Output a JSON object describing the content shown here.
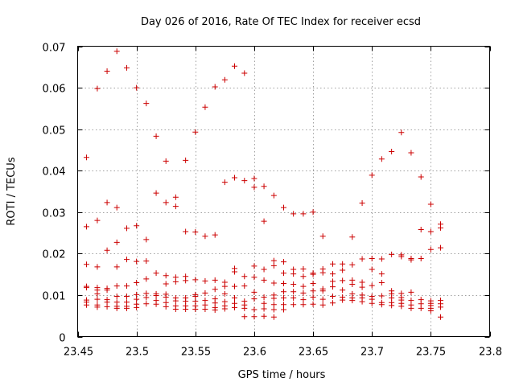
{
  "chart_data": {
    "type": "scatter",
    "title": "Day 026 of 2016, Rate Of TEC Index for receiver ecsd",
    "xlabel": "GPS time / hours",
    "ylabel": "ROTI / TECUs",
    "xlim": [
      23.45,
      23.8
    ],
    "ylim": [
      0,
      0.07
    ],
    "xticks": [
      "23.45",
      "23.5",
      "23.55",
      "23.6",
      "23.65",
      "23.7",
      "23.75",
      "23.8"
    ],
    "yticks": [
      "0",
      "0.01",
      "0.02",
      "0.03",
      "0.04",
      "0.05",
      "0.06",
      "0.07"
    ],
    "grid": true,
    "marker": "+",
    "color": "#cc0000",
    "points": [
      [
        23.4575,
        0.0432
      ],
      [
        23.4575,
        0.0265
      ],
      [
        23.4575,
        0.0174
      ],
      [
        23.4575,
        0.0121
      ],
      [
        23.4575,
        0.0118
      ],
      [
        23.4575,
        0.0088
      ],
      [
        23.4575,
        0.0083
      ],
      [
        23.4575,
        0.0076
      ],
      [
        23.4667,
        0.0598
      ],
      [
        23.4667,
        0.028
      ],
      [
        23.4667,
        0.0168
      ],
      [
        23.4667,
        0.0118
      ],
      [
        23.4667,
        0.0112
      ],
      [
        23.4667,
        0.0103
      ],
      [
        23.4667,
        0.009
      ],
      [
        23.4667,
        0.0076
      ],
      [
        23.4667,
        0.0071
      ],
      [
        23.475,
        0.064
      ],
      [
        23.475,
        0.0323
      ],
      [
        23.475,
        0.0208
      ],
      [
        23.475,
        0.0116
      ],
      [
        23.475,
        0.0112
      ],
      [
        23.475,
        0.0089
      ],
      [
        23.475,
        0.0083
      ],
      [
        23.475,
        0.0072
      ],
      [
        23.4833,
        0.0688
      ],
      [
        23.4833,
        0.0311
      ],
      [
        23.4833,
        0.0227
      ],
      [
        23.4833,
        0.0168
      ],
      [
        23.4833,
        0.0122
      ],
      [
        23.4833,
        0.0097
      ],
      [
        23.4833,
        0.0083
      ],
      [
        23.4833,
        0.0073
      ],
      [
        23.4833,
        0.0068
      ],
      [
        23.4917,
        0.0648
      ],
      [
        23.4917,
        0.0261
      ],
      [
        23.4917,
        0.0186
      ],
      [
        23.4917,
        0.0122
      ],
      [
        23.4917,
        0.0097
      ],
      [
        23.4917,
        0.0083
      ],
      [
        23.4917,
        0.0073
      ],
      [
        23.4917,
        0.0068
      ],
      [
        23.5,
        0.06
      ],
      [
        23.5,
        0.0267
      ],
      [
        23.5,
        0.0181
      ],
      [
        23.5,
        0.013
      ],
      [
        23.5,
        0.0101
      ],
      [
        23.5,
        0.009
      ],
      [
        23.5,
        0.0078
      ],
      [
        23.5,
        0.007
      ],
      [
        23.5083,
        0.0562
      ],
      [
        23.5083,
        0.0234
      ],
      [
        23.5083,
        0.0182
      ],
      [
        23.5083,
        0.0139
      ],
      [
        23.5083,
        0.0104
      ],
      [
        23.5083,
        0.0094
      ],
      [
        23.5083,
        0.0079
      ],
      [
        23.5167,
        0.0483
      ],
      [
        23.5167,
        0.0346
      ],
      [
        23.5167,
        0.0153
      ],
      [
        23.5167,
        0.0103
      ],
      [
        23.5167,
        0.0099
      ],
      [
        23.5167,
        0.0087
      ],
      [
        23.5167,
        0.0078
      ],
      [
        23.525,
        0.0423
      ],
      [
        23.525,
        0.0323
      ],
      [
        23.525,
        0.0147
      ],
      [
        23.525,
        0.0127
      ],
      [
        23.525,
        0.0102
      ],
      [
        23.525,
        0.0095
      ],
      [
        23.525,
        0.0082
      ],
      [
        23.525,
        0.0072
      ],
      [
        23.5333,
        0.0336
      ],
      [
        23.5333,
        0.0314
      ],
      [
        23.5333,
        0.0143
      ],
      [
        23.5333,
        0.0132
      ],
      [
        23.5333,
        0.0093
      ],
      [
        23.5333,
        0.0086
      ],
      [
        23.5333,
        0.0074
      ],
      [
        23.5333,
        0.0066
      ],
      [
        23.5417,
        0.0425
      ],
      [
        23.5417,
        0.0253
      ],
      [
        23.5417,
        0.0145
      ],
      [
        23.5417,
        0.0135
      ],
      [
        23.5417,
        0.0093
      ],
      [
        23.5417,
        0.0085
      ],
      [
        23.5417,
        0.0074
      ],
      [
        23.5417,
        0.0066
      ],
      [
        23.55,
        0.0493
      ],
      [
        23.55,
        0.0252
      ],
      [
        23.55,
        0.0137
      ],
      [
        23.55,
        0.0101
      ],
      [
        23.55,
        0.0097
      ],
      [
        23.55,
        0.0085
      ],
      [
        23.55,
        0.0074
      ],
      [
        23.55,
        0.0066
      ],
      [
        23.5583,
        0.0553
      ],
      [
        23.5583,
        0.0242
      ],
      [
        23.5583,
        0.0134
      ],
      [
        23.5583,
        0.0105
      ],
      [
        23.5583,
        0.0087
      ],
      [
        23.5583,
        0.0076
      ],
      [
        23.5583,
        0.0066
      ],
      [
        23.5667,
        0.0602
      ],
      [
        23.5667,
        0.0245
      ],
      [
        23.5667,
        0.0136
      ],
      [
        23.5667,
        0.0114
      ],
      [
        23.5667,
        0.0091
      ],
      [
        23.5667,
        0.0081
      ],
      [
        23.5667,
        0.007
      ],
      [
        23.5667,
        0.0064
      ],
      [
        23.575,
        0.0619
      ],
      [
        23.575,
        0.0372
      ],
      [
        23.575,
        0.0131
      ],
      [
        23.575,
        0.0121
      ],
      [
        23.575,
        0.0103
      ],
      [
        23.575,
        0.0084
      ],
      [
        23.575,
        0.0074
      ],
      [
        23.575,
        0.0067
      ],
      [
        23.5833,
        0.0652
      ],
      [
        23.5833,
        0.0383
      ],
      [
        23.5833,
        0.0164
      ],
      [
        23.5833,
        0.0156
      ],
      [
        23.5833,
        0.0121
      ],
      [
        23.5833,
        0.0093
      ],
      [
        23.5833,
        0.008
      ],
      [
        23.5833,
        0.007
      ],
      [
        23.5917,
        0.0635
      ],
      [
        23.5917,
        0.0376
      ],
      [
        23.5917,
        0.0145
      ],
      [
        23.5917,
        0.0122
      ],
      [
        23.5917,
        0.0085
      ],
      [
        23.5917,
        0.0076
      ],
      [
        23.5917,
        0.0068
      ],
      [
        23.5917,
        0.0048
      ],
      [
        23.6,
        0.0381
      ],
      [
        23.6,
        0.036
      ],
      [
        23.6,
        0.017
      ],
      [
        23.6,
        0.0143
      ],
      [
        23.6,
        0.0107
      ],
      [
        23.6,
        0.0091
      ],
      [
        23.6,
        0.0065
      ],
      [
        23.6,
        0.0048
      ],
      [
        23.6083,
        0.0362
      ],
      [
        23.6083,
        0.0278
      ],
      [
        23.6083,
        0.0162
      ],
      [
        23.6083,
        0.0136
      ],
      [
        23.6083,
        0.0095
      ],
      [
        23.6083,
        0.008
      ],
      [
        23.6083,
        0.0067
      ],
      [
        23.6083,
        0.0049
      ],
      [
        23.6167,
        0.034
      ],
      [
        23.6167,
        0.0183
      ],
      [
        23.6167,
        0.0171
      ],
      [
        23.6167,
        0.0129
      ],
      [
        23.6167,
        0.01
      ],
      [
        23.6167,
        0.0092
      ],
      [
        23.6167,
        0.0077
      ],
      [
        23.6167,
        0.0065
      ],
      [
        23.6167,
        0.0047
      ],
      [
        23.625,
        0.0311
      ],
      [
        23.625,
        0.018
      ],
      [
        23.625,
        0.0153
      ],
      [
        23.625,
        0.0128
      ],
      [
        23.625,
        0.0108
      ],
      [
        23.625,
        0.0093
      ],
      [
        23.625,
        0.0077
      ],
      [
        23.625,
        0.0065
      ],
      [
        23.6333,
        0.0296
      ],
      [
        23.6333,
        0.0162
      ],
      [
        23.6333,
        0.0151
      ],
      [
        23.6333,
        0.0126
      ],
      [
        23.6333,
        0.0108
      ],
      [
        23.6333,
        0.0093
      ],
      [
        23.6333,
        0.0077
      ],
      [
        23.6417,
        0.0296
      ],
      [
        23.6417,
        0.0163
      ],
      [
        23.6417,
        0.0145
      ],
      [
        23.6417,
        0.0121
      ],
      [
        23.6417,
        0.0105
      ],
      [
        23.6417,
        0.0089
      ],
      [
        23.6417,
        0.0077
      ],
      [
        23.65,
        0.03
      ],
      [
        23.65,
        0.0153
      ],
      [
        23.65,
        0.015
      ],
      [
        23.65,
        0.0128
      ],
      [
        23.65,
        0.011
      ],
      [
        23.65,
        0.0095
      ],
      [
        23.65,
        0.0078
      ],
      [
        23.6583,
        0.0242
      ],
      [
        23.6583,
        0.0163
      ],
      [
        23.6583,
        0.0154
      ],
      [
        23.6583,
        0.0115
      ],
      [
        23.6583,
        0.011
      ],
      [
        23.6583,
        0.009
      ],
      [
        23.6583,
        0.0076
      ],
      [
        23.6667,
        0.0175
      ],
      [
        23.6667,
        0.0151
      ],
      [
        23.6667,
        0.0133
      ],
      [
        23.6667,
        0.012
      ],
      [
        23.6667,
        0.0097
      ],
      [
        23.6667,
        0.0081
      ],
      [
        23.675,
        0.0175
      ],
      [
        23.675,
        0.016
      ],
      [
        23.675,
        0.0135
      ],
      [
        23.675,
        0.0112
      ],
      [
        23.675,
        0.0095
      ],
      [
        23.675,
        0.0088
      ],
      [
        23.6833,
        0.024
      ],
      [
        23.6833,
        0.0173
      ],
      [
        23.6833,
        0.0136
      ],
      [
        23.6833,
        0.0126
      ],
      [
        23.6833,
        0.0103
      ],
      [
        23.6833,
        0.0093
      ],
      [
        23.6833,
        0.0087
      ],
      [
        23.6917,
        0.0322
      ],
      [
        23.6917,
        0.0187
      ],
      [
        23.6917,
        0.0131
      ],
      [
        23.6917,
        0.0119
      ],
      [
        23.6917,
        0.01
      ],
      [
        23.6917,
        0.0093
      ],
      [
        23.6917,
        0.0084
      ],
      [
        23.7,
        0.0389
      ],
      [
        23.7,
        0.0188
      ],
      [
        23.7,
        0.0162
      ],
      [
        23.7,
        0.0123
      ],
      [
        23.7,
        0.0097
      ],
      [
        23.7,
        0.009
      ],
      [
        23.7,
        0.008
      ],
      [
        23.7083,
        0.0428
      ],
      [
        23.7083,
        0.0187
      ],
      [
        23.7083,
        0.0151
      ],
      [
        23.7083,
        0.013
      ],
      [
        23.7083,
        0.0098
      ],
      [
        23.7083,
        0.0082
      ],
      [
        23.7083,
        0.0077
      ],
      [
        23.7167,
        0.0446
      ],
      [
        23.7167,
        0.0198
      ],
      [
        23.7167,
        0.011
      ],
      [
        23.7167,
        0.0103
      ],
      [
        23.7167,
        0.0093
      ],
      [
        23.7167,
        0.0082
      ],
      [
        23.7167,
        0.0075
      ],
      [
        23.725,
        0.0492
      ],
      [
        23.725,
        0.0197
      ],
      [
        23.725,
        0.0193
      ],
      [
        23.725,
        0.0104
      ],
      [
        23.725,
        0.0094
      ],
      [
        23.725,
        0.0088
      ],
      [
        23.725,
        0.008
      ],
      [
        23.725,
        0.0073
      ],
      [
        23.7333,
        0.0443
      ],
      [
        23.7333,
        0.0188
      ],
      [
        23.7333,
        0.0185
      ],
      [
        23.7333,
        0.0107
      ],
      [
        23.7333,
        0.0087
      ],
      [
        23.7333,
        0.0076
      ],
      [
        23.7333,
        0.0068
      ],
      [
        23.7417,
        0.0385
      ],
      [
        23.7417,
        0.0258
      ],
      [
        23.7417,
        0.0188
      ],
      [
        23.7417,
        0.0089
      ],
      [
        23.7417,
        0.0079
      ],
      [
        23.7417,
        0.0068
      ],
      [
        23.75,
        0.0319
      ],
      [
        23.75,
        0.0253
      ],
      [
        23.75,
        0.021
      ],
      [
        23.75,
        0.0086
      ],
      [
        23.75,
        0.008
      ],
      [
        23.75,
        0.0075
      ],
      [
        23.75,
        0.0068
      ],
      [
        23.75,
        0.0062
      ],
      [
        23.7583,
        0.0271
      ],
      [
        23.7583,
        0.0262
      ],
      [
        23.7583,
        0.0214
      ],
      [
        23.7583,
        0.0087
      ],
      [
        23.7583,
        0.0079
      ],
      [
        23.7583,
        0.0071
      ],
      [
        23.7583,
        0.0047
      ]
    ]
  }
}
